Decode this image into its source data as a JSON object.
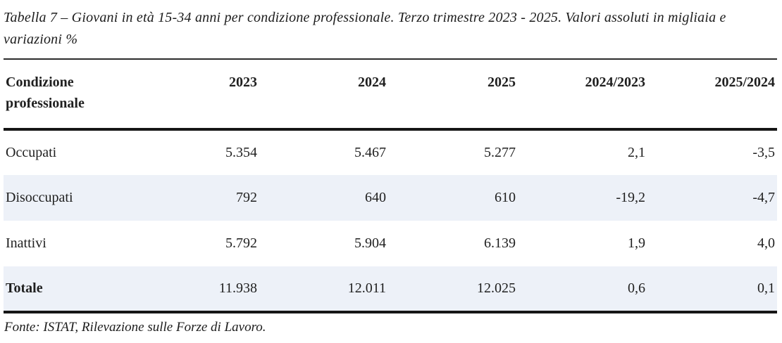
{
  "title": {
    "text": "Tabella 7 – Giovani in età 15-34 anni per condizione professionale. Terzo trimestre 2023 - 2025. Valori assoluti in migliaia e variazioni %"
  },
  "table": {
    "columns": [
      "Condizione professionale",
      "2023",
      "2024",
      "2025",
      "2024/2023",
      "2025/2024"
    ],
    "rows": [
      {
        "label": "Occupati",
        "values": [
          "5.354",
          "5.467",
          "5.277",
          "2,1",
          "-3,5"
        ],
        "bold": false,
        "shaded": false
      },
      {
        "label": "Disoccupati",
        "values": [
          "792",
          "640",
          "610",
          "-19,2",
          "-4,7"
        ],
        "bold": false,
        "shaded": true
      },
      {
        "label": "Inattivi",
        "values": [
          "5.792",
          "5.904",
          "6.139",
          "1,9",
          "4,0"
        ],
        "bold": false,
        "shaded": false
      },
      {
        "label": "Totale",
        "values": [
          "11.938",
          "12.011",
          "12.025",
          "0,6",
          "0,1"
        ],
        "bold": true,
        "shaded": true
      }
    ]
  },
  "footer": {
    "source": "Fonte: ISTAT, Rilevazione sulle Forze di Lavoro."
  },
  "colors": {
    "row_shade": "#edf1f8",
    "rule": "#161616",
    "text": "#1f1f1f"
  }
}
